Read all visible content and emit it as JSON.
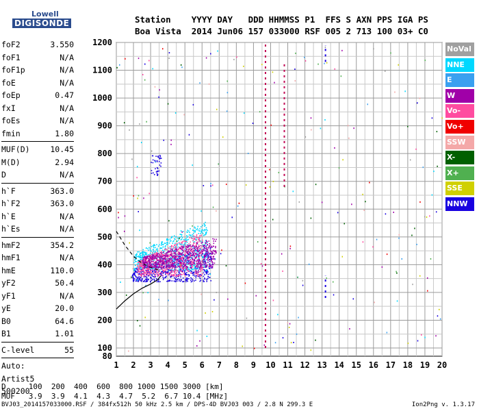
{
  "logo": {
    "line1": "Lowell",
    "line2": "DIGISONDE"
  },
  "header": {
    "labels": "Station    YYYY DAY   DDD HHMMSS P1  FFS S AXN PPS IGA PS",
    "values": "Boa Vista  2014 Jun06 157 033000 RSF 005 2 713 100 03+ C0"
  },
  "params": [
    {
      "k": "foF2",
      "v": "3.550"
    },
    {
      "k": "foF1",
      "v": "N/A"
    },
    {
      "k": "foF1p",
      "v": "N/A"
    },
    {
      "k": "foE",
      "v": "N/A"
    },
    {
      "k": "foEp",
      "v": "0.47"
    },
    {
      "k": "fxI",
      "v": "N/A"
    },
    {
      "k": "foEs",
      "v": "N/A"
    },
    {
      "k": "fmin",
      "v": "1.80"
    },
    {
      "sep": true
    },
    {
      "k": "MUF(D)",
      "v": "10.45"
    },
    {
      "k": "M(D)",
      "v": "2.94"
    },
    {
      "k": "D",
      "v": "N/A"
    },
    {
      "sep": true
    },
    {
      "k": "h`F",
      "v": "363.0"
    },
    {
      "k": "h`F2",
      "v": "363.0"
    },
    {
      "k": "h`E",
      "v": "N/A"
    },
    {
      "k": "h`Es",
      "v": "N/A"
    },
    {
      "sep": true
    },
    {
      "k": "hmF2",
      "v": "354.2"
    },
    {
      "k": "hmF1",
      "v": "N/A"
    },
    {
      "k": "hmE",
      "v": "110.0"
    },
    {
      "k": "yF2",
      "v": "50.4"
    },
    {
      "k": "yF1",
      "v": "N/A"
    },
    {
      "k": "yE",
      "v": "20.0"
    },
    {
      "k": "B0",
      "v": "64.6"
    },
    {
      "k": "B1",
      "v": "1.01"
    },
    {
      "sep": true
    },
    {
      "k": "C-level",
      "v": "55"
    },
    {
      "sep": true
    },
    {
      "k": "Auto:",
      "v": ""
    },
    {
      "k": "Artist5",
      "v": ""
    },
    {
      "k": "500200",
      "v": ""
    }
  ],
  "legend": [
    {
      "label": "NoVal",
      "color": "#a0a0a0"
    },
    {
      "label": "NNE",
      "color": "#00d8ff"
    },
    {
      "label": "E",
      "color": "#3aa0f0"
    },
    {
      "label": "W",
      "color": "#a000a8"
    },
    {
      "label": "Vo-",
      "color": "#ff4ca0"
    },
    {
      "label": "Vo+",
      "color": "#f00000"
    },
    {
      "label": "SSW",
      "color": "#f4a8a8"
    },
    {
      "label": "X-",
      "color": "#006000"
    },
    {
      "label": "X+",
      "color": "#50b050"
    },
    {
      "label": "SSE",
      "color": "#d0d000"
    },
    {
      "label": "NNW",
      "color": "#1800e0"
    }
  ],
  "chart_data": {
    "type": "scatter",
    "xlim": [
      1,
      20
    ],
    "ylim": [
      80,
      1200
    ],
    "xticks": [
      "1",
      "2",
      "3",
      "4",
      "5",
      "6",
      "7",
      "8",
      "9",
      "10",
      "11",
      "12",
      "13",
      "14",
      "15",
      "16",
      "17",
      "18",
      "19",
      "20"
    ],
    "yticks": [
      "80",
      "100",
      "200",
      "300",
      "400",
      "500",
      "600",
      "700",
      "800",
      "900",
      "1000",
      "1100",
      "1200"
    ],
    "grid": true,
    "yscale": "mixed",
    "clusters": [
      {
        "x": [
          1.9,
          6.6
        ],
        "y": [
          340,
          470
        ],
        "color": "#1800e0"
      },
      {
        "x": [
          2.0,
          6.3
        ],
        "y": [
          380,
          560
        ],
        "color": "#00d8ff"
      },
      {
        "x": [
          2.2,
          6.0
        ],
        "y": [
          360,
          520
        ],
        "color": "#ff4ca0"
      },
      {
        "x": [
          2.5,
          6.8
        ],
        "y": [
          390,
          500
        ],
        "color": "#a000a8"
      },
      {
        "x": [
          3.0,
          3.6
        ],
        "y": [
          720,
          800
        ],
        "color": "#1800e0"
      }
    ],
    "profile_solid": [
      [
        1,
        240
      ],
      [
        1.5,
        270
      ],
      [
        2,
        295
      ],
      [
        2.5,
        315
      ],
      [
        3,
        330
      ],
      [
        3.4,
        345
      ],
      [
        3.6,
        360
      ]
    ],
    "profile_dashed": [
      [
        1,
        520
      ],
      [
        1.5,
        470
      ],
      [
        2,
        430
      ],
      [
        2.5,
        405
      ],
      [
        3,
        390
      ],
      [
        3.5,
        380
      ]
    ],
    "vertical_marks": [
      {
        "x": 9.7,
        "y": [
          100,
          1200
        ],
        "color": "#c00050"
      },
      {
        "x": 10.8,
        "y": [
          680,
          1130
        ],
        "color": "#c00050"
      },
      {
        "x": 13.2,
        "y": [
          280,
          360
        ],
        "color": "#1800e0"
      },
      {
        "x": 13.2,
        "y": [
          1130,
          1190
        ],
        "color": "#1800e0"
      }
    ]
  },
  "footer": {
    "d_row": "D     100  200  400  600  800 1000 1500 3000 [km]",
    "muf_row": "MUF   3.9  3.9  4.1  4.3  4.7  5.2  6.7 10.4 [MHz]"
  },
  "bottom_info": "BVJ03_2014157033000.RSF / 384fx512h 50 kHz 2.5 km / DPS-4D BVJ03 003 / 2.8 N 299.3 E",
  "version": "Ion2Png v. 1.3.17"
}
